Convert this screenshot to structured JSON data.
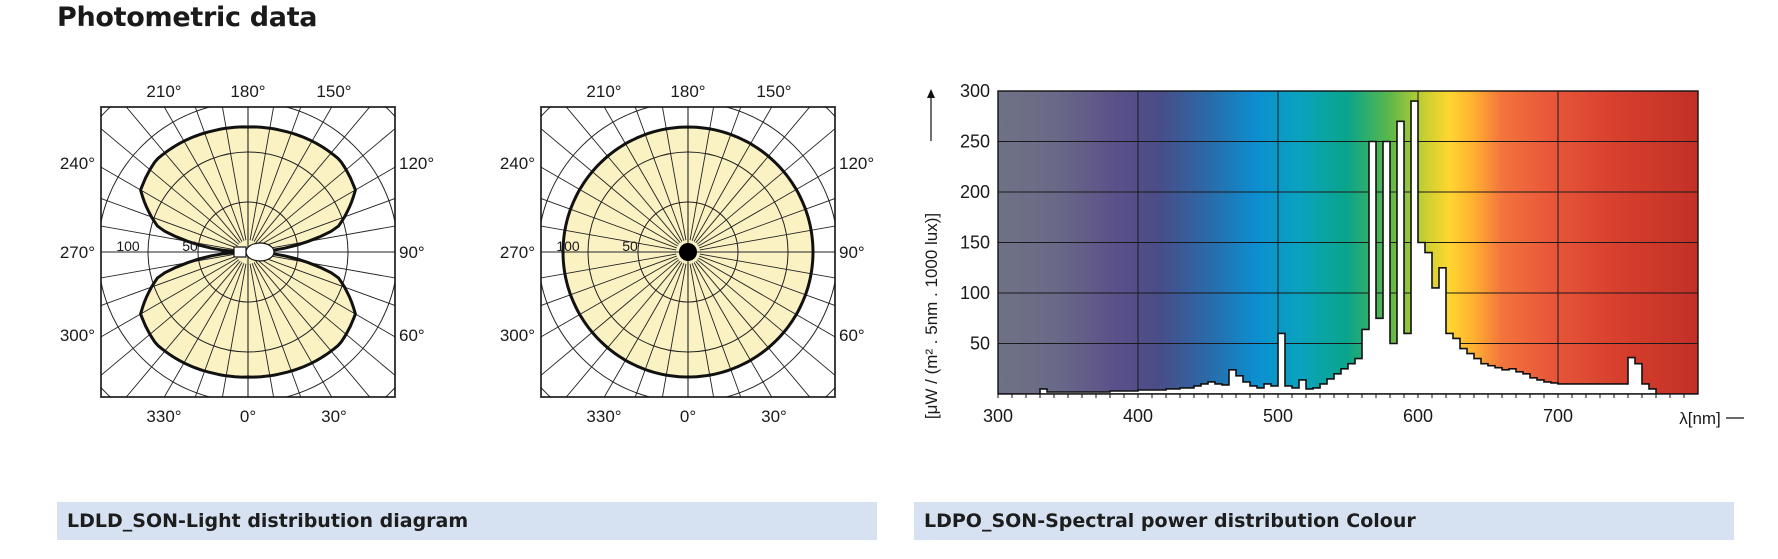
{
  "page": {
    "title": "Photometric data"
  },
  "captions": {
    "left": "LDLD_SON-Light distribution diagram",
    "right": "LDPO_SON-Spectral power distribution Colour"
  },
  "colors": {
    "polar_fill": "#fbf2c4",
    "caption_bg": "#d6e2f1"
  },
  "chart_data": [
    {
      "type": "polar",
      "angle_labels": {
        "top": [
          "210°",
          "180°",
          "150°"
        ],
        "left": [
          "240°",
          "270°",
          "300°"
        ],
        "right": [
          "120°",
          "90°",
          "60°"
        ],
        "bottom": [
          "330°",
          "0°",
          "30°"
        ]
      },
      "radial_labels": [
        "100",
        "50"
      ],
      "radial_ticks": [
        50,
        100,
        150,
        200
      ],
      "distribution": {
        "shape": "butterfly",
        "angles_deg": [
          0,
          15,
          30,
          45,
          60,
          75,
          90,
          105,
          120,
          135,
          150,
          165,
          180
        ],
        "intensity": [
          125,
          126,
          128,
          130,
          124,
          92,
          0,
          92,
          124,
          130,
          128,
          126,
          125
        ]
      }
    },
    {
      "type": "polar",
      "angle_labels": {
        "top": [
          "210°",
          "180°",
          "150°"
        ],
        "left": [
          "240°",
          "270°",
          "300°"
        ],
        "right": [
          "120°",
          "90°",
          "60°"
        ],
        "bottom": [
          "330°",
          "0°",
          "30°"
        ]
      },
      "radial_labels": [
        "100",
        "50"
      ],
      "radial_ticks": [
        50,
        100,
        150,
        200
      ],
      "distribution": {
        "shape": "uniform",
        "angles_deg": [
          0,
          90,
          180
        ],
        "intensity": [
          125,
          125,
          125
        ]
      }
    },
    {
      "type": "area",
      "xlabel": "λ[nm]",
      "ylabel": "[μW / (m² . 5nm . 1000 lux)]",
      "xlim": [
        300,
        800
      ],
      "ylim": [
        0,
        300
      ],
      "x_ticks": [
        300,
        400,
        500,
        600,
        700
      ],
      "y_ticks": [
        50,
        100,
        150,
        200,
        250,
        300
      ],
      "grid": true,
      "x": [
        300,
        330,
        335,
        340,
        380,
        400,
        420,
        430,
        440,
        445,
        450,
        455,
        460,
        465,
        470,
        475,
        480,
        485,
        490,
        495,
        500,
        505,
        510,
        515,
        520,
        525,
        530,
        535,
        540,
        545,
        550,
        555,
        560,
        565,
        570,
        575,
        580,
        585,
        590,
        595,
        600,
        605,
        610,
        615,
        620,
        625,
        630,
        635,
        640,
        645,
        650,
        655,
        660,
        665,
        670,
        675,
        680,
        685,
        690,
        695,
        700,
        705,
        710,
        715,
        720,
        725,
        730,
        735,
        740,
        745,
        750,
        755,
        760,
        765,
        770,
        775,
        780,
        785,
        790,
        795,
        800
      ],
      "values": [
        0,
        5,
        2,
        2,
        3,
        4,
        5,
        6,
        8,
        10,
        12,
        10,
        9,
        24,
        18,
        12,
        8,
        6,
        10,
        8,
        60,
        8,
        6,
        14,
        5,
        6,
        10,
        15,
        20,
        25,
        30,
        35,
        64,
        250,
        75,
        250,
        50,
        270,
        60,
        290,
        150,
        140,
        105,
        125,
        60,
        55,
        45,
        40,
        35,
        30,
        28,
        26,
        24,
        25,
        22,
        20,
        16,
        14,
        12,
        11,
        10,
        10,
        10,
        10,
        10,
        10,
        10,
        10,
        10,
        10,
        36,
        30,
        10,
        5,
        0,
        0,
        0,
        0,
        0,
        0,
        0
      ]
    }
  ]
}
